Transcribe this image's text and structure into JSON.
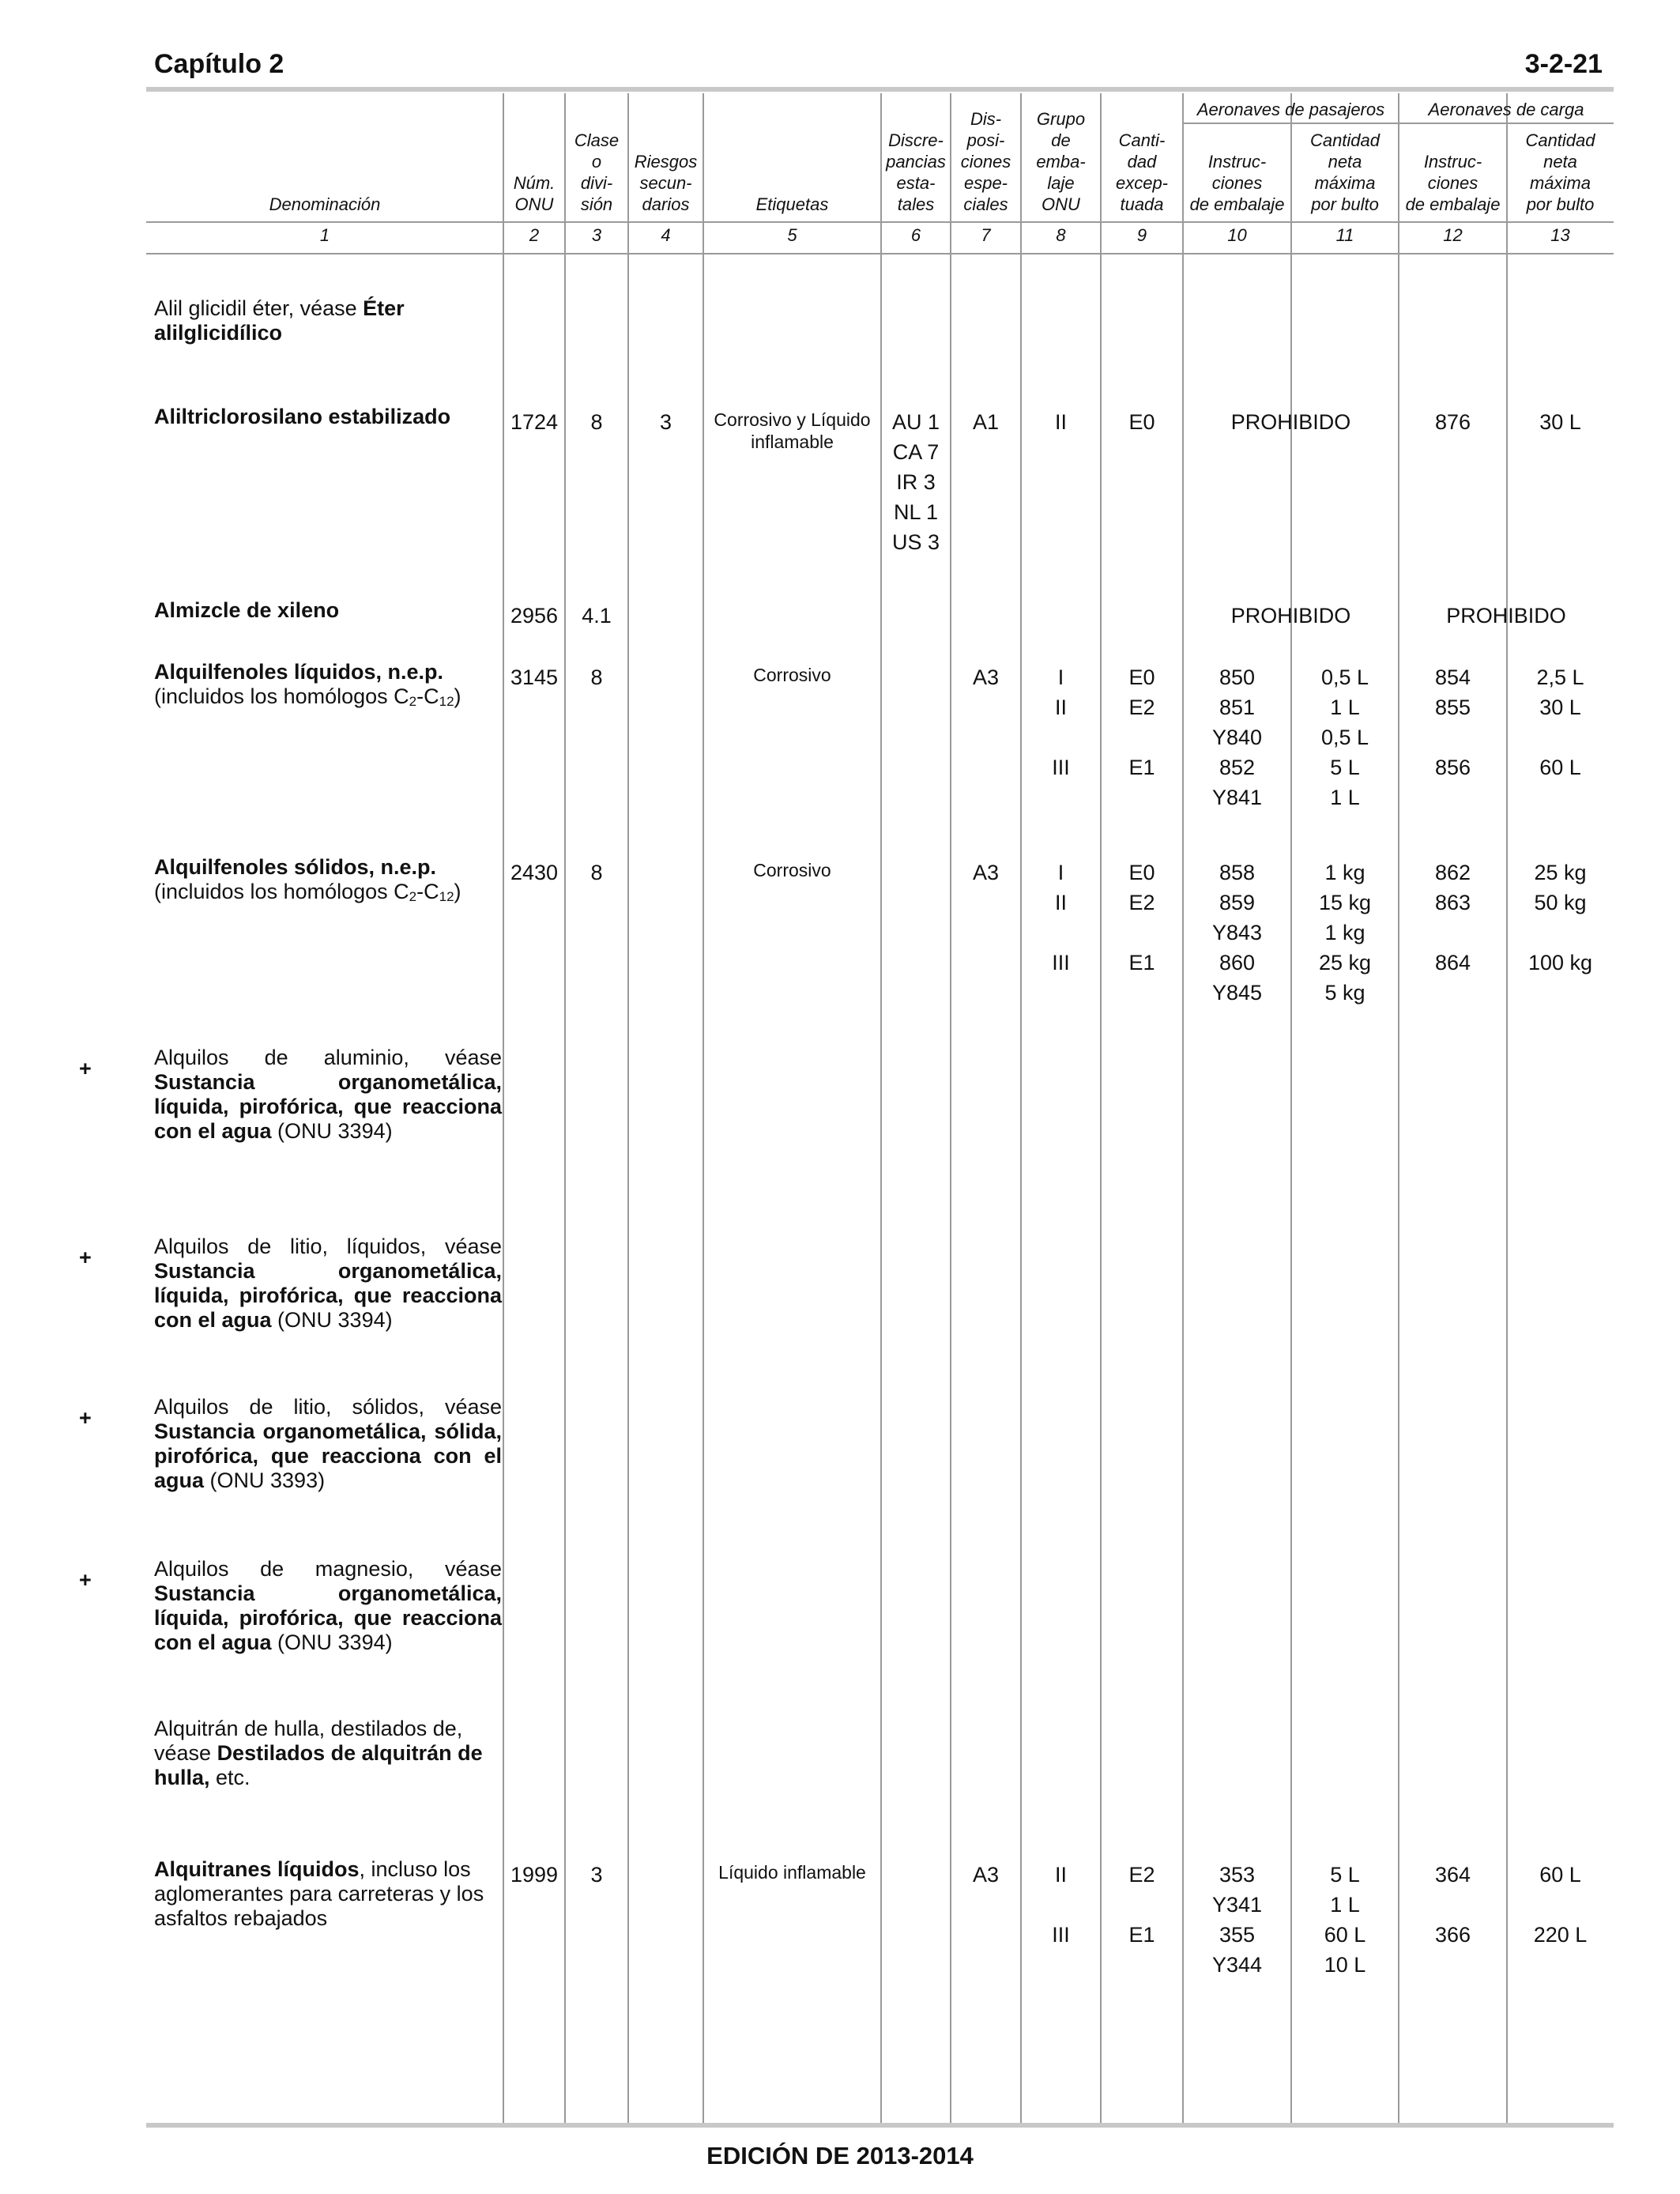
{
  "header": {
    "chapter": "Capítulo 2",
    "page": "3-2-21"
  },
  "footer": {
    "edition": "EDICIÓN DE 2013-2014"
  },
  "columns": {
    "group_passenger": "Aeronaves de pasajeros",
    "group_cargo": "Aeronaves de carga",
    "c1": [
      "Denominación"
    ],
    "c2": [
      "Núm.",
      "ONU"
    ],
    "c3": [
      "Clase",
      "o",
      "divi-",
      "sión"
    ],
    "c4": [
      "Riesgos",
      "secun-",
      "darios"
    ],
    "c5": [
      "Etiquetas"
    ],
    "c6": [
      "Discre-",
      "pancias",
      "esta-",
      "tales"
    ],
    "c7": [
      "Dis-",
      "posi-",
      "ciones",
      "espe-",
      "ciales"
    ],
    "c8": [
      "Grupo",
      "de",
      "emba-",
      "laje",
      "ONU"
    ],
    "c9": [
      "Canti-",
      "dad",
      "excep-",
      "tuada"
    ],
    "c10": [
      "Instruc-",
      "ciones",
      "de embalaje"
    ],
    "c11": [
      "Cantidad",
      "neta",
      "máxima",
      "por bulto"
    ],
    "c12": [
      "Instruc-",
      "ciones",
      "de embalaje"
    ],
    "c13": [
      "Cantidad",
      "neta",
      "máxima",
      "por bulto"
    ],
    "numbers": [
      "1",
      "2",
      "3",
      "4",
      "5",
      "6",
      "7",
      "8",
      "9",
      "10",
      "11",
      "12",
      "13"
    ]
  },
  "rows": [
    {
      "name_plain": "Alil glicidil éter, véase ",
      "name_bold": "Éter alilglicidílico"
    },
    {
      "name_bold": "Aliltriclorosilano estabilizado",
      "un": "1724",
      "class": "8",
      "sub_risk": "3",
      "labels": "Corrosivo y Líquido inflamable",
      "state_var": [
        "AU 1",
        "CA 7",
        "IR 3",
        "NL 1",
        "US 3"
      ],
      "special": "A1",
      "pg": [
        "II"
      ],
      "excepted": [
        "E0"
      ],
      "pax_forbidden": "PROHIBIDO",
      "cargo_pi": [
        "876"
      ],
      "cargo_qty": [
        "30 L"
      ]
    },
    {
      "name_bold": "Almizcle de xileno",
      "un": "2956",
      "class": "4.1",
      "pax_forbidden": "PROHIBIDO",
      "cargo_forbidden": "PROHIBIDO"
    },
    {
      "name_bold": "Alquilfenoles líquidos, n.e.p.",
      "name_plain_a": "(incluidos los homólogos C",
      "sub1": "2",
      "mid": "-C",
      "sub2": "12",
      "name_plain_b": ")",
      "un": "3145",
      "class": "8",
      "labels": "Corrosivo",
      "special": "A3",
      "pg": [
        "I",
        "II",
        "",
        "III",
        ""
      ],
      "excepted": [
        "E0",
        "E2",
        "",
        "E1",
        ""
      ],
      "pax_pi": [
        "850",
        "851",
        "Y840",
        "852",
        "Y841"
      ],
      "pax_qty": [
        "0,5 L",
        "1 L",
        "0,5 L",
        "5 L",
        "1 L"
      ],
      "cargo_pi": [
        "854",
        "855",
        "",
        "856",
        ""
      ],
      "cargo_qty": [
        "2,5 L",
        "30 L",
        "",
        "60 L",
        ""
      ]
    },
    {
      "name_bold": "Alquilfenoles sólidos, n.e.p.",
      "name_plain_a": "(incluidos los homólogos C",
      "sub1": "2",
      "mid": "-C",
      "sub2": "12",
      "name_plain_b": ")",
      "un": "2430",
      "class": "8",
      "labels": "Corrosivo",
      "special": "A3",
      "pg": [
        "I",
        "II",
        "",
        "III",
        ""
      ],
      "excepted": [
        "E0",
        "E2",
        "",
        "E1",
        ""
      ],
      "pax_pi": [
        "858",
        "859",
        "Y843",
        "860",
        "Y845"
      ],
      "pax_qty": [
        "1 kg",
        "15 kg",
        "1 kg",
        "25 kg",
        "5 kg"
      ],
      "cargo_pi": [
        "862",
        "863",
        "",
        "864",
        ""
      ],
      "cargo_qty": [
        "25 kg",
        "50 kg",
        "",
        "100 kg",
        ""
      ]
    },
    {
      "mark": "+",
      "name_plain": "Alquilos de aluminio, véase",
      "name_bold": "Sustancia organometálica, líquida, pirofórica, que reacciona con el agua",
      "name_tail": " (ONU 3394)"
    },
    {
      "mark": "+",
      "name_plain": "Alquilos de litio, líquidos, véase",
      "name_bold": "Sustancia organometálica, líquida, pirofórica, que reacciona con el agua",
      "name_tail": " (ONU 3394)"
    },
    {
      "mark": "+",
      "name_plain": "Alquilos de litio, sólidos, véase",
      "name_bold": "Sustancia organometálica, sólida, pirofórica, que reacciona con el agua",
      "name_tail": " (ONU 3393)"
    },
    {
      "mark": "+",
      "name_plain": "Alquilos de magnesio, véase",
      "name_bold": "Sustancia organometálica, líquida, pirofórica, que reacciona con el agua",
      "name_tail": " (ONU 3394)"
    },
    {
      "name_plain": "Alquitrán de hulla, destilados de, véase ",
      "name_bold": "Destilados de alquitrán de hulla,",
      "name_tail": " etc."
    },
    {
      "name_bold": "Alquitranes líquidos",
      "name_tail": ", incluso los aglomerantes para carreteras y los asfaltos rebajados",
      "un": "1999",
      "class": "3",
      "labels": "Líquido inflamable",
      "special": "A3",
      "pg": [
        "II",
        "",
        "III",
        ""
      ],
      "excepted": [
        "E2",
        "",
        "E1",
        ""
      ],
      "pax_pi": [
        "353",
        "Y341",
        "355",
        "Y344"
      ],
      "pax_qty": [
        "5 L",
        "1 L",
        "60 L",
        "10 L"
      ],
      "cargo_pi": [
        "364",
        "",
        "366",
        ""
      ],
      "cargo_qty": [
        "60 L",
        "",
        "220 L",
        ""
      ]
    }
  ]
}
